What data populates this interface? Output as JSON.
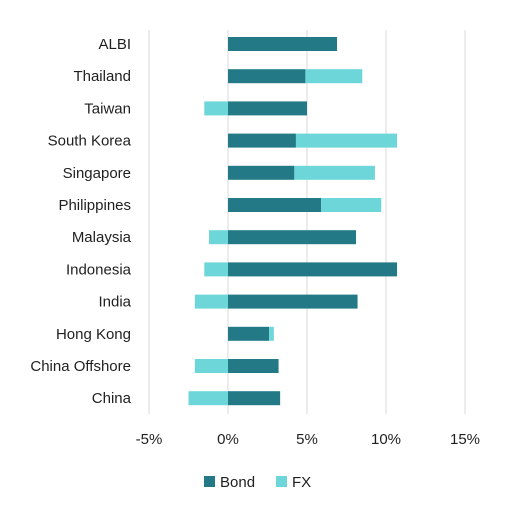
{
  "chart_data": {
    "type": "bar",
    "orientation": "horizontal",
    "stacked": true,
    "categories": [
      "ALBI",
      "Thailand",
      "Taiwan",
      "South Korea",
      "Singapore",
      "Philippines",
      "Malaysia",
      "Indonesia",
      "India",
      "Hong Kong",
      "China Offshore",
      "China"
    ],
    "series": [
      {
        "name": "Bond",
        "color": "#237a86",
        "values": [
          6.9,
          4.9,
          5.0,
          4.3,
          4.2,
          5.9,
          8.1,
          10.7,
          8.2,
          2.6,
          3.2,
          3.3
        ]
      },
      {
        "name": "FX",
        "color": "#6dd6d9",
        "values": [
          0.0,
          3.6,
          -1.5,
          6.4,
          5.1,
          3.8,
          -1.2,
          -1.5,
          -2.1,
          0.3,
          -2.1,
          -2.5
        ]
      }
    ],
    "title": "",
    "xlabel": "",
    "ylabel": "",
    "xlim": [
      -5,
      15
    ],
    "x_ticks": [
      -5,
      0,
      5,
      10,
      15
    ],
    "x_tick_labels": [
      "-5%",
      "0%",
      "5%",
      "10%",
      "15%"
    ],
    "grid": "vertical",
    "legend_position": "bottom"
  }
}
